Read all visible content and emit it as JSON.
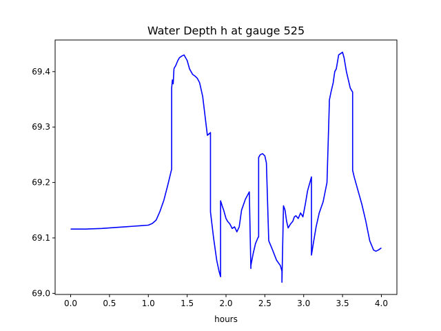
{
  "chart_data": {
    "type": "line",
    "title": "Water Depth h at gauge 525",
    "xlabel": "hours",
    "ylabel": "",
    "xlim": [
      -0.2,
      4.2
    ],
    "ylim": [
      68.998,
      69.457
    ],
    "xticks": [
      0.0,
      0.5,
      1.0,
      1.5,
      2.0,
      2.5,
      3.0,
      3.5,
      4.0
    ],
    "xtick_labels": [
      "0.0",
      "0.5",
      "1.0",
      "1.5",
      "2.0",
      "2.5",
      "3.0",
      "3.5",
      "4.0"
    ],
    "yticks": [
      69.0,
      69.1,
      69.2,
      69.3,
      69.4
    ],
    "ytick_labels": [
      "69.0",
      "69.1",
      "69.2",
      "69.3",
      "69.4"
    ],
    "grid": false,
    "series": [
      {
        "color": "#0000ff",
        "x": [
          0.0,
          0.2,
          0.4,
          0.6,
          0.7,
          0.8,
          0.9,
          1.0,
          1.05,
          1.1,
          1.15,
          1.2,
          1.25,
          1.3,
          1.3,
          1.31,
          1.32,
          1.33,
          1.34,
          1.35,
          1.38,
          1.4,
          1.43,
          1.46,
          1.5,
          1.53,
          1.57,
          1.6,
          1.63,
          1.66,
          1.7,
          1.73,
          1.76,
          1.8,
          1.8,
          1.84,
          1.88,
          1.91,
          1.93,
          1.93,
          1.95,
          1.97,
          2.0,
          2.02,
          2.05,
          2.08,
          2.11,
          2.14,
          2.17,
          2.2,
          2.25,
          2.3,
          2.32,
          2.32,
          2.35,
          2.38,
          2.41,
          2.42,
          2.42,
          2.44,
          2.47,
          2.5,
          2.52,
          2.55,
          2.6,
          2.65,
          2.7,
          2.72,
          2.72,
          2.74,
          2.76,
          2.78,
          2.8,
          2.83,
          2.86,
          2.88,
          2.9,
          2.93,
          2.96,
          2.99,
          3.02,
          3.05,
          3.08,
          3.1,
          3.1,
          3.13,
          3.16,
          3.2,
          3.25,
          3.3,
          3.33,
          3.33,
          3.35,
          3.38,
          3.4,
          3.42,
          3.45,
          3.48,
          3.5,
          3.52,
          3.55,
          3.6,
          3.63,
          3.63,
          3.65,
          3.7,
          3.75,
          3.8,
          3.85,
          3.9,
          3.93,
          3.96,
          4.0
        ],
        "y": [
          69.116,
          69.116,
          69.117,
          69.119,
          69.12,
          69.121,
          69.122,
          69.123,
          69.126,
          69.132,
          69.148,
          69.168,
          69.195,
          69.224,
          69.37,
          69.385,
          69.378,
          69.405,
          69.408,
          69.41,
          69.42,
          69.425,
          69.428,
          69.43,
          69.42,
          69.405,
          69.395,
          69.392,
          69.388,
          69.38,
          69.355,
          69.32,
          69.285,
          69.29,
          69.147,
          69.1,
          69.06,
          69.04,
          69.03,
          69.167,
          69.158,
          69.15,
          69.135,
          69.13,
          69.125,
          69.117,
          69.12,
          69.111,
          69.12,
          69.15,
          69.17,
          69.183,
          69.045,
          69.05,
          69.072,
          69.09,
          69.1,
          69.102,
          69.245,
          69.25,
          69.252,
          69.248,
          69.235,
          69.095,
          69.078,
          69.06,
          69.05,
          69.04,
          69.02,
          69.158,
          69.15,
          69.13,
          69.118,
          69.125,
          69.13,
          69.138,
          69.14,
          69.135,
          69.145,
          69.138,
          69.16,
          69.185,
          69.2,
          69.21,
          69.069,
          69.095,
          69.12,
          69.145,
          69.165,
          69.2,
          69.342,
          69.348,
          69.362,
          69.38,
          69.4,
          69.405,
          69.43,
          69.433,
          69.435,
          69.425,
          69.4,
          69.37,
          69.363,
          69.222,
          69.21,
          69.185,
          69.16,
          69.13,
          69.095,
          69.078,
          69.076,
          69.078,
          69.082
        ]
      }
    ]
  }
}
